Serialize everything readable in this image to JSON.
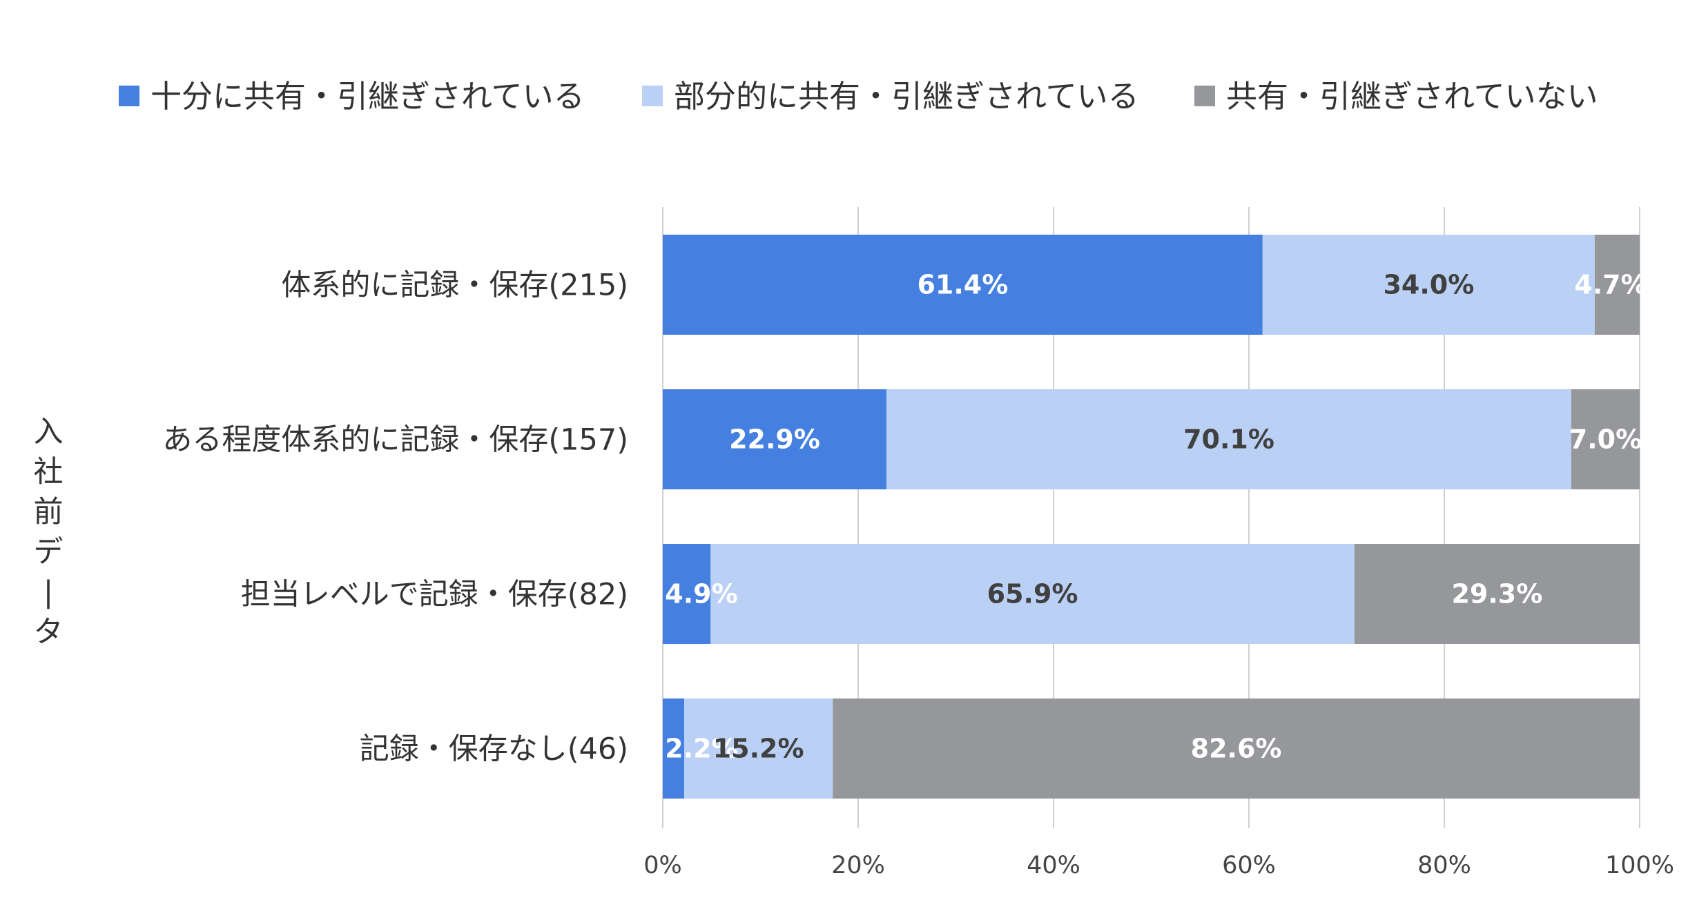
{
  "chart_data": {
    "type": "bar",
    "orientation": "horizontal",
    "stacked": true,
    "ylabel": "入社前データ",
    "xlim": [
      0,
      100
    ],
    "x_ticks": [
      "0%",
      "20%",
      "40%",
      "60%",
      "80%",
      "100%"
    ],
    "grid": true,
    "legend_position": "top",
    "categories": [
      "体系的に記録・保存(215)",
      "ある程度体系的に記録・保存(157)",
      "担当レベルで記録・保存(82)",
      "記録・保存なし(46)"
    ],
    "series": [
      {
        "name": "十分に共有・引継ぎされている",
        "color": "#4580E0",
        "label_color": "#FFFFFF",
        "values": [
          61.4,
          22.9,
          4.9,
          2.2
        ],
        "labels": [
          "61.4%",
          "22.9%",
          "4.9%",
          "2.2%"
        ]
      },
      {
        "name": "部分的に共有・引継ぎされている",
        "color": "#BBD0F5",
        "label_color": "#404040",
        "values": [
          34.0,
          70.1,
          65.9,
          15.2
        ],
        "labels": [
          "34.0%",
          "70.1%",
          "65.9%",
          "15.2%"
        ]
      },
      {
        "name": "共有・引継ぎされていない",
        "color": "#96979B",
        "label_color": "#FFFFFF",
        "values": [
          4.7,
          7.0,
          29.3,
          82.6
        ],
        "labels": [
          "4.7%",
          "7.0%",
          "29.3%",
          "82.6%"
        ]
      }
    ]
  }
}
